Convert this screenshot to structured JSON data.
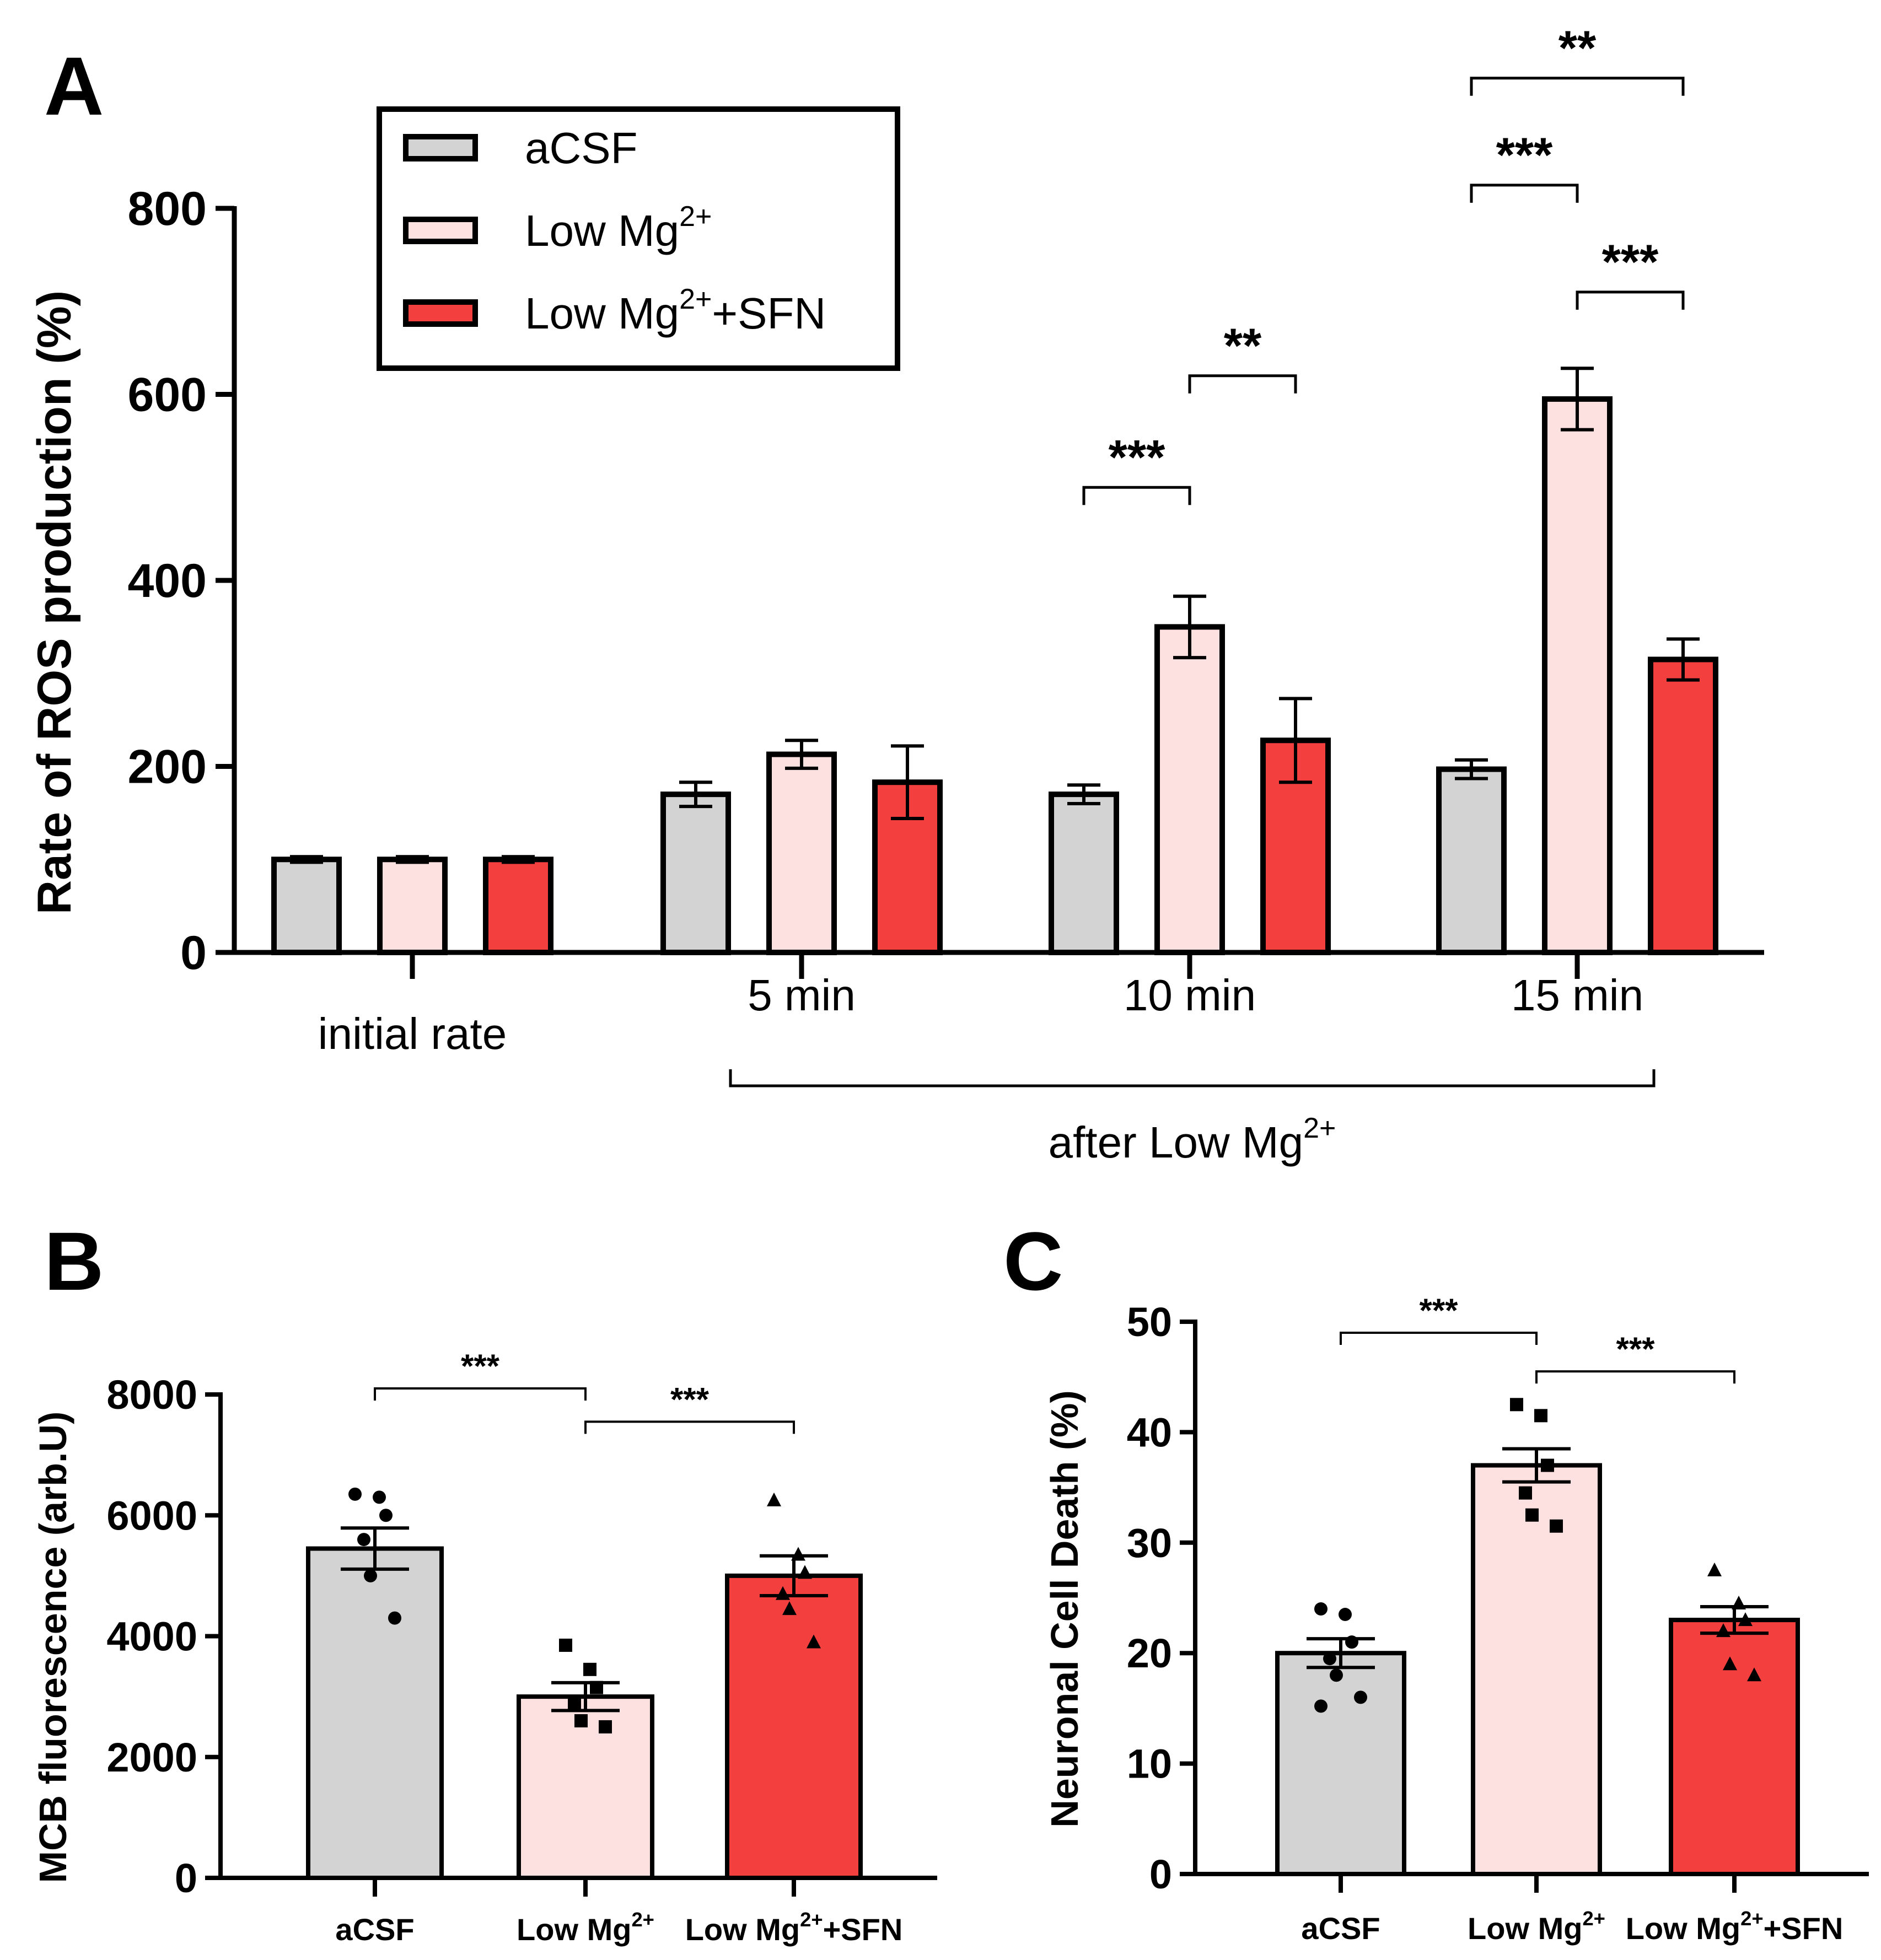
{
  "colors": {
    "aCSF": "#d3d3d3",
    "LowMg": "#fde0e0",
    "LowMgSFN": "#f43f3f",
    "stroke": "#000000"
  },
  "legend": {
    "items": [
      {
        "text": "aCSF",
        "sup": "",
        "tail": "",
        "colorKey": "aCSF"
      },
      {
        "text": "Low Mg",
        "sup": "2+",
        "tail": "",
        "colorKey": "LowMg"
      },
      {
        "text": "Low Mg",
        "sup": "2+",
        "tail": "+SFN",
        "colorKey": "LowMgSFN"
      }
    ]
  },
  "chart_data": [
    {
      "panel": "A",
      "type": "bar",
      "ylabel": "Rate of ROS production (%)",
      "ylim": [
        0,
        800
      ],
      "yticks": [
        0,
        200,
        400,
        600,
        800
      ],
      "groups": [
        {
          "label": "initial rate",
          "values": [
            100,
            100,
            100
          ],
          "errors": [
            3,
            3,
            3
          ]
        },
        {
          "label": "5 min",
          "values": [
            170,
            213,
            183
          ],
          "errors": [
            13,
            15,
            39
          ]
        },
        {
          "label": "10 min",
          "values": [
            170,
            350,
            228
          ],
          "errors": [
            10,
            33,
            45
          ]
        },
        {
          "label": "15 min",
          "values": [
            197,
            595,
            315
          ],
          "errors": [
            10,
            33,
            22
          ]
        }
      ],
      "series": [
        {
          "name": "aCSF",
          "colorKey": "aCSF"
        },
        {
          "name": "Low Mg2+",
          "colorKey": "LowMg"
        },
        {
          "name": "Low Mg2+ +SFN",
          "colorKey": "LowMgSFN"
        }
      ],
      "bracket_label": {
        "text": "after Low Mg",
        "sup": "2+"
      },
      "significance": [
        {
          "group": 2,
          "from": 0,
          "to": 1,
          "stars": "***",
          "level": 500
        },
        {
          "group": 2,
          "from": 1,
          "to": 2,
          "stars": "**",
          "level": 620
        },
        {
          "group": 3,
          "from": 0,
          "to": 1,
          "stars": "***",
          "level": 825
        },
        {
          "group": 3,
          "from": 1,
          "to": 2,
          "stars": "***",
          "level": 710
        },
        {
          "group": 3,
          "from": 0,
          "to": 2,
          "stars": "**",
          "level": 940
        }
      ]
    },
    {
      "panel": "B",
      "type": "bar",
      "ylabel": "MCB fluorescence (arb.U)",
      "ylim": [
        0,
        8000
      ],
      "yticks": [
        0,
        2000,
        4000,
        6000,
        8000
      ],
      "categories": [
        {
          "text": "aCSF",
          "sup": "",
          "tail": ""
        },
        {
          "text": "Low Mg",
          "sup": "2+",
          "tail": ""
        },
        {
          "text": "Low Mg",
          "sup": "2+",
          "tail": "+SFN"
        }
      ],
      "values": [
        5450,
        3000,
        5000
      ],
      "errors": [
        340,
        230,
        330
      ],
      "points": [
        [
          6350,
          6300,
          6000,
          5600,
          5000,
          4300
        ],
        [
          3850,
          3450,
          3150,
          2900,
          2600,
          2500
        ],
        [
          6250,
          5350,
          5050,
          4700,
          4450,
          3900
        ]
      ],
      "markers": [
        "circle",
        "square",
        "triangle"
      ],
      "significance": [
        {
          "from": 0,
          "to": 1,
          "stars": "***",
          "level": 8100
        },
        {
          "from": 1,
          "to": 2,
          "stars": "***",
          "level": 7550
        }
      ]
    },
    {
      "panel": "C",
      "type": "bar",
      "ylabel": "Neuronal Cell Death (%)",
      "ylim": [
        0,
        50
      ],
      "yticks": [
        0,
        10,
        20,
        30,
        40,
        50
      ],
      "categories": [
        {
          "text": "aCSF",
          "sup": "",
          "tail": ""
        },
        {
          "text": "Low Mg",
          "sup": "2+",
          "tail": ""
        },
        {
          "text": "Low Mg",
          "sup": "2+",
          "tail": "+SFN"
        }
      ],
      "values": [
        20,
        37,
        23
      ],
      "errors": [
        1.3,
        1.5,
        1.2
      ],
      "points": [
        [
          24,
          23.5,
          21,
          19.5,
          18,
          16,
          15.2
        ],
        [
          42.5,
          41.5,
          37,
          34.5,
          32.5,
          31.5
        ],
        [
          27.5,
          24.5,
          23,
          22,
          19,
          18
        ]
      ],
      "markers": [
        "circle",
        "square",
        "triangle"
      ],
      "significance": [
        {
          "from": 0,
          "to": 1,
          "stars": "***",
          "level": 49
        },
        {
          "from": 1,
          "to": 2,
          "stars": "***",
          "level": 45.5
        }
      ]
    }
  ]
}
